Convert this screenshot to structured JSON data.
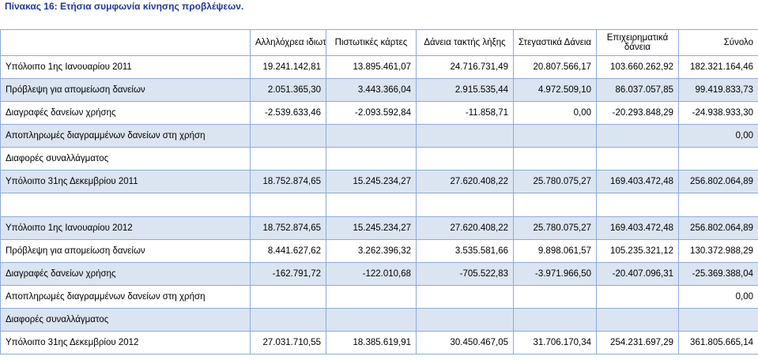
{
  "caption": "Πίνακας 16: Ετήσια συμφωνία κίνησης προβλέψεων.",
  "headers": [
    "",
    "Αλληλόχρεα ιδιωτών",
    "Πιστωτικές κάρτες",
    "Δάνεια τακτής λήξης",
    "Στεγαστικά Δάνεια",
    "Επιχειρηματικά δάνεια",
    "Σύνολο"
  ],
  "rows": [
    {
      "label": "Υπόλοιπο 1ης Ιανουαρίου 2011",
      "values": [
        "19.241.142,81",
        "13.895.461,07",
        "24.716.731,49",
        "20.807.566,17",
        "103.660.262,92",
        "182.321.164,46"
      ]
    },
    {
      "label": "Πρόβλεψη για απομείωση δανείων",
      "values": [
        "2.051.365,30",
        "3.443.366,04",
        "2.915.535,44",
        "4.972.509,10",
        "86.037.057,85",
        "99.419.833,73"
      ]
    },
    {
      "label": "Διαγραφές δανείων χρήσης",
      "values": [
        "-2.539.633,46",
        "-2.093.592,84",
        "-11.858,71",
        "0,00",
        "-20.293.848,29",
        "-24.938.933,30"
      ]
    },
    {
      "label": "Αποπληρωμές διαγραμμένων δανείων στη χρήση",
      "values": [
        "",
        "",
        "",
        "",
        "",
        "0,00"
      ]
    },
    {
      "label": "Διαφορές συναλλάγματος",
      "values": [
        "",
        "",
        "",
        "",
        "",
        ""
      ]
    },
    {
      "label": "Υπόλοιπο 31ης Δεκεμβρίου 2011",
      "values": [
        "18.752.874,65",
        "15.245.234,27",
        "27.620.408,22",
        "25.780.075,27",
        "169.403.472,48",
        "256.802.064,89"
      ]
    },
    {
      "label": "",
      "values": [
        "",
        "",
        "",
        "",
        "",
        ""
      ]
    },
    {
      "label": "Υπόλοιπο 1ης Ιανουαρίου 2012",
      "values": [
        "18.752.874,65",
        "15.245.234,27",
        "27.620.408,22",
        "25.780.075,27",
        "169.403.472,48",
        "256.802.064,89"
      ]
    },
    {
      "label": "Πρόβλεψη για απομείωση δανείων",
      "values": [
        "8.441.627,62",
        "3.262.396,32",
        "3.535.581,66",
        "9.898.061,57",
        "105.235.321,12",
        "130.372.988,29"
      ]
    },
    {
      "label": "Διαγραφές δανείων χρήσης",
      "values": [
        "-162.791,72",
        "-122.010,68",
        "-705.522,83",
        "-3.971.966,50",
        "-20.407.096,31",
        "-25.369.388,04"
      ]
    },
    {
      "label": "Αποπληρωμές διαγραμμένων δανείων στη χρήση",
      "values": [
        "",
        "",
        "",
        "",
        "",
        "0,00"
      ]
    },
    {
      "label": "Διαφορές συναλλάγματος",
      "values": [
        "",
        "",
        "",
        "",
        "",
        ""
      ]
    },
    {
      "label": "Υπόλοιπο 31ης Δεκεμβρίου 2012",
      "values": [
        "27.031.710,55",
        "18.385.619,91",
        "30.450.467,05",
        "31.706.170,34",
        "254.231.697,29",
        "361.805.665,14"
      ]
    }
  ],
  "colors": {
    "caption": "#1f3a93",
    "band": "#dbe5f1",
    "border": "#8eaadb"
  }
}
